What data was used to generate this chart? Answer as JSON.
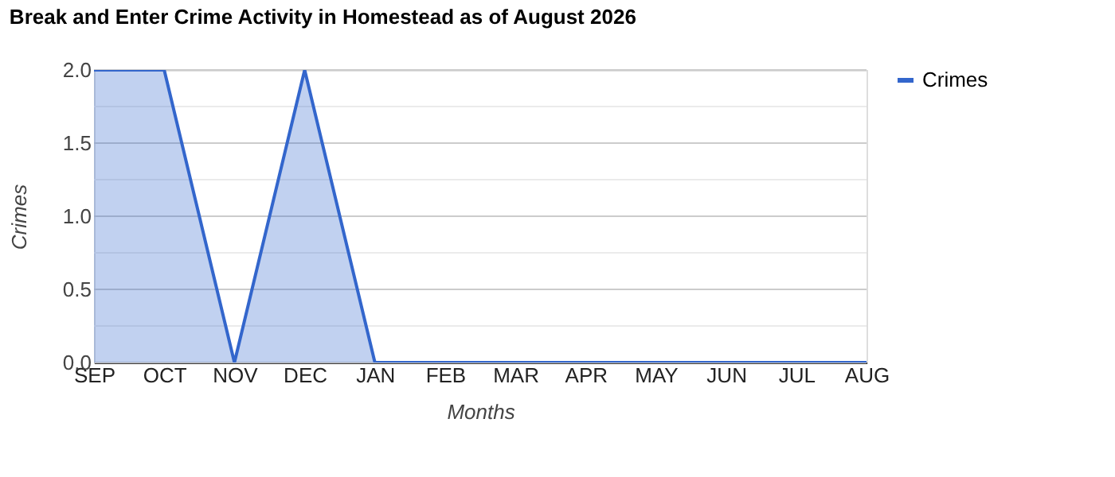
{
  "chart_data": {
    "type": "area",
    "title": "Break and Enter Crime Activity in Homestead as of August 2026",
    "xlabel": "Months",
    "ylabel": "Crimes",
    "categories": [
      "SEP",
      "OCT",
      "NOV",
      "DEC",
      "JAN",
      "FEB",
      "MAR",
      "APR",
      "MAY",
      "JUN",
      "JUL",
      "AUG"
    ],
    "series": [
      {
        "name": "Crimes",
        "color": "#3366cc",
        "values": [
          2,
          2,
          0,
          2,
          0,
          0,
          0,
          0,
          0,
          0,
          0,
          0
        ]
      }
    ],
    "ylim": [
      0,
      2
    ],
    "yticks": [
      {
        "value": 0,
        "label": "0.0"
      },
      {
        "value": 0.25,
        "label": null
      },
      {
        "value": 0.5,
        "label": "0.5"
      },
      {
        "value": 0.75,
        "label": null
      },
      {
        "value": 1,
        "label": "1.0"
      },
      {
        "value": 1.25,
        "label": null
      },
      {
        "value": 1.5,
        "label": "1.5"
      },
      {
        "value": 1.75,
        "label": null
      },
      {
        "value": 2,
        "label": "2.0"
      }
    ],
    "grid": "y",
    "legend": "top right"
  }
}
